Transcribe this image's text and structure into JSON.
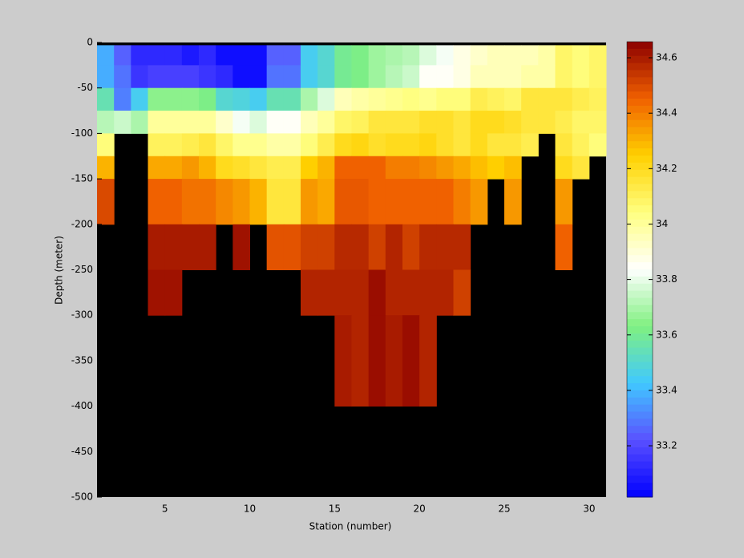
{
  "chart_data": {
    "type": "heatmap",
    "xlabel": "Station (number)",
    "ylabel": "Depth (meter)",
    "x_edges": [
      1,
      2,
      3,
      4,
      5,
      6,
      7,
      8,
      9,
      10,
      11,
      12,
      13,
      14,
      15,
      16,
      17,
      18,
      19,
      20,
      21,
      22,
      23,
      24,
      25,
      26,
      27,
      28,
      29,
      30,
      31
    ],
    "y_edges": [
      -3,
      -25,
      -50,
      -75,
      -100,
      -125,
      -150,
      -200,
      -250,
      -300,
      -400,
      -500
    ],
    "values": [
      [
        33.38,
        33.25,
        33.12,
        33.12,
        33.12,
        33.08,
        33.12,
        33.05,
        33.05,
        33.05,
        33.25,
        33.25,
        33.45,
        33.5,
        33.6,
        33.62,
        33.68,
        33.7,
        33.72,
        33.78,
        33.82,
        33.88,
        33.92,
        33.95,
        33.95,
        33.95,
        33.98,
        34.08,
        34.05,
        34.08
      ],
      [
        33.38,
        33.28,
        33.15,
        33.18,
        33.18,
        33.18,
        33.15,
        33.12,
        33.05,
        33.05,
        33.28,
        33.28,
        33.45,
        33.5,
        33.6,
        33.62,
        33.68,
        33.72,
        33.75,
        33.85,
        33.85,
        33.88,
        33.95,
        33.95,
        33.95,
        33.98,
        33.98,
        34.08,
        34.05,
        34.08
      ],
      [
        33.55,
        33.3,
        33.45,
        33.65,
        33.65,
        33.65,
        33.62,
        33.5,
        33.48,
        33.45,
        33.55,
        33.55,
        33.7,
        33.78,
        33.95,
        33.98,
        34.0,
        34.02,
        34.04,
        34.02,
        34.05,
        34.05,
        34.12,
        34.1,
        34.08,
        34.15,
        34.15,
        34.15,
        34.12,
        34.1
      ],
      [
        33.72,
        33.75,
        33.7,
        34.0,
        34.0,
        34.0,
        34.0,
        33.92,
        33.82,
        33.78,
        33.85,
        33.85,
        33.95,
        34.0,
        34.08,
        34.1,
        34.15,
        34.15,
        34.15,
        34.18,
        34.18,
        34.15,
        34.2,
        34.2,
        34.18,
        34.15,
        34.15,
        34.12,
        34.08,
        34.08
      ],
      [
        34.05,
        null,
        null,
        34.1,
        34.1,
        34.12,
        34.15,
        34.08,
        34.02,
        34.02,
        33.98,
        33.98,
        34.05,
        34.12,
        34.2,
        34.22,
        34.18,
        34.2,
        34.2,
        34.22,
        34.18,
        34.15,
        34.2,
        34.15,
        34.15,
        34.12,
        null,
        34.15,
        34.1,
        34.05
      ],
      [
        34.3,
        null,
        null,
        34.32,
        34.32,
        34.35,
        34.3,
        34.2,
        34.18,
        34.15,
        34.12,
        34.12,
        34.25,
        34.3,
        34.45,
        34.45,
        34.45,
        34.4,
        34.4,
        34.38,
        34.35,
        34.32,
        34.28,
        34.25,
        34.28,
        null,
        null,
        34.2,
        34.15,
        null
      ],
      [
        34.5,
        null,
        null,
        34.45,
        34.45,
        34.42,
        34.42,
        34.38,
        34.35,
        34.3,
        34.15,
        34.15,
        34.35,
        34.32,
        34.47,
        34.47,
        34.45,
        34.45,
        34.45,
        34.45,
        34.45,
        34.4,
        34.35,
        null,
        34.35,
        null,
        null,
        34.35,
        null,
        null
      ],
      [
        null,
        null,
        null,
        34.6,
        34.6,
        34.6,
        34.6,
        null,
        34.62,
        null,
        34.48,
        34.48,
        34.52,
        34.52,
        34.57,
        34.57,
        34.52,
        34.58,
        34.52,
        34.57,
        34.57,
        34.57,
        null,
        null,
        null,
        null,
        null,
        34.45,
        null,
        null
      ],
      [
        null,
        null,
        null,
        34.62,
        34.62,
        null,
        null,
        null,
        null,
        null,
        null,
        null,
        34.58,
        34.58,
        34.58,
        34.58,
        34.63,
        34.58,
        34.58,
        34.58,
        34.58,
        34.52,
        null,
        null,
        null,
        null,
        null,
        null,
        null,
        null
      ],
      [
        null,
        null,
        null,
        null,
        null,
        null,
        null,
        null,
        null,
        null,
        null,
        null,
        null,
        null,
        34.6,
        34.58,
        34.63,
        34.6,
        34.63,
        34.58,
        null,
        null,
        null,
        null,
        null,
        null,
        null,
        null,
        null,
        null
      ],
      [
        null,
        null,
        null,
        null,
        null,
        null,
        null,
        null,
        null,
        null,
        null,
        null,
        null,
        null,
        null,
        null,
        null,
        null,
        null,
        null,
        null,
        null,
        null,
        null,
        null,
        null,
        null,
        null,
        null,
        null
      ]
    ],
    "xlim": [
      1,
      31
    ],
    "xticks": [
      5,
      10,
      15,
      20,
      25,
      30
    ],
    "ylim": [
      -500,
      0
    ],
    "yticks": [
      0,
      -50,
      -100,
      -150,
      -200,
      -250,
      -300,
      -350,
      -400,
      -450,
      -500
    ],
    "clim": [
      33.015,
      34.658
    ],
    "cticks": [
      33.2,
      33.4,
      33.6,
      33.8,
      34,
      34.2,
      34.4,
      34.6
    ],
    "colormap": [
      "#0000ff",
      "#5a50ff",
      "#40c8ff",
      "#80f080",
      "#ffffff",
      "#ffff80",
      "#ffd000",
      "#f06000",
      "#8c0000"
    ],
    "background": "#000000"
  }
}
